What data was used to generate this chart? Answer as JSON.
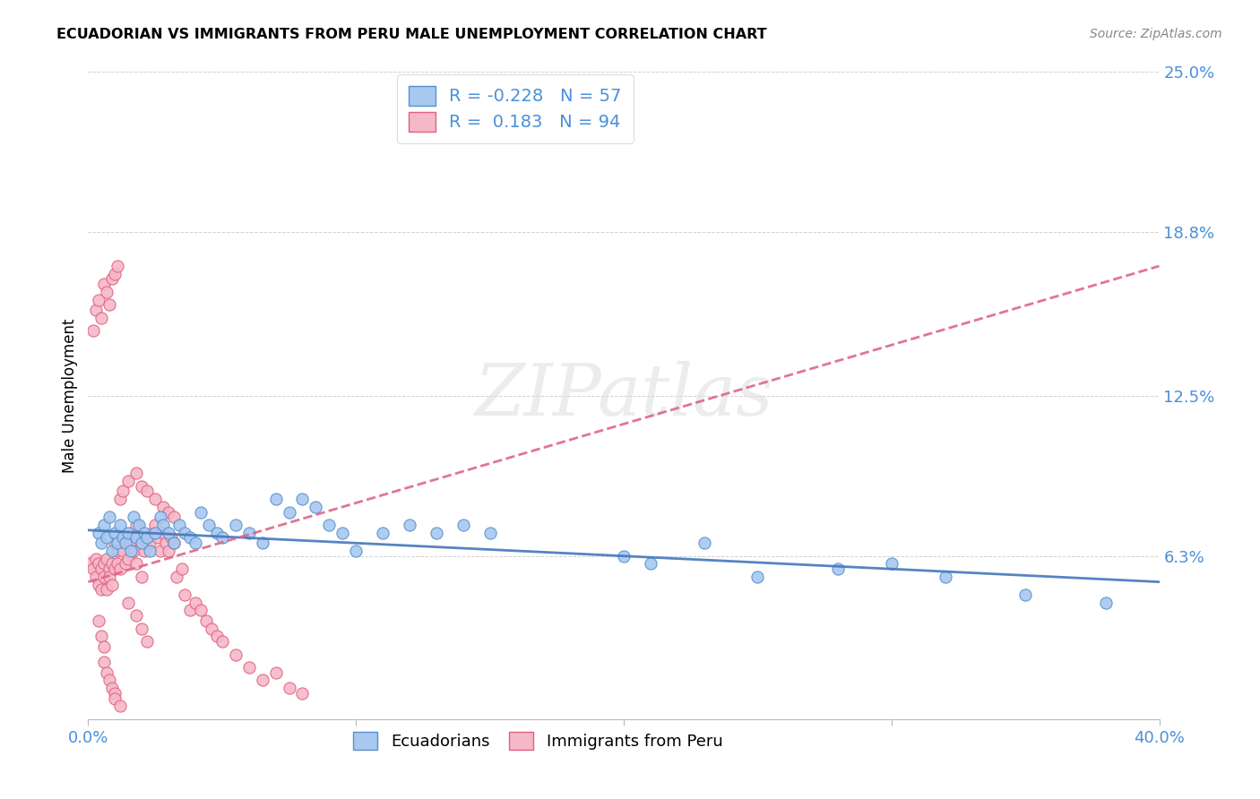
{
  "title": "ECUADORIAN VS IMMIGRANTS FROM PERU MALE UNEMPLOYMENT CORRELATION CHART",
  "source": "Source: ZipAtlas.com",
  "ylabel": "Male Unemployment",
  "xlim": [
    0.0,
    0.4
  ],
  "ylim": [
    0.0,
    0.25
  ],
  "yticks": [
    0.063,
    0.125,
    0.188,
    0.25
  ],
  "ytick_labels": [
    "6.3%",
    "12.5%",
    "18.8%",
    "25.0%"
  ],
  "xticks": [
    0.0,
    0.1,
    0.2,
    0.3,
    0.4
  ],
  "xtick_labels": [
    "0.0%",
    "",
    "",
    "",
    "40.0%"
  ],
  "blue_color": "#A8C8F0",
  "pink_color": "#F5B8C8",
  "blue_edge_color": "#5590CC",
  "pink_edge_color": "#E06080",
  "blue_line_color": "#4477BB",
  "pink_line_color": "#DD6688",
  "blue_R": -0.228,
  "blue_N": 57,
  "pink_R": 0.183,
  "pink_N": 94,
  "watermark": "ZIPatlas",
  "background_color": "#FFFFFF",
  "grid_color": "#CCCCCC",
  "axis_label_color": "#4A90D9",
  "blue_trend_x": [
    0.0,
    0.4
  ],
  "blue_trend_y": [
    0.073,
    0.053
  ],
  "pink_trend_x": [
    0.0,
    0.4
  ],
  "pink_trend_y": [
    0.053,
    0.175
  ],
  "blue_scatter_x": [
    0.004,
    0.005,
    0.006,
    0.007,
    0.008,
    0.009,
    0.01,
    0.011,
    0.012,
    0.013,
    0.014,
    0.015,
    0.016,
    0.017,
    0.018,
    0.019,
    0.02,
    0.021,
    0.022,
    0.023,
    0.025,
    0.027,
    0.028,
    0.03,
    0.032,
    0.034,
    0.036,
    0.038,
    0.04,
    0.042,
    0.045,
    0.048,
    0.05,
    0.055,
    0.06,
    0.065,
    0.07,
    0.075,
    0.08,
    0.085,
    0.09,
    0.095,
    0.1,
    0.11,
    0.12,
    0.13,
    0.14,
    0.15,
    0.2,
    0.21,
    0.23,
    0.25,
    0.28,
    0.3,
    0.32,
    0.35,
    0.38
  ],
  "blue_scatter_y": [
    0.072,
    0.068,
    0.075,
    0.07,
    0.078,
    0.065,
    0.072,
    0.068,
    0.075,
    0.07,
    0.068,
    0.072,
    0.065,
    0.078,
    0.07,
    0.075,
    0.068,
    0.072,
    0.07,
    0.065,
    0.072,
    0.078,
    0.075,
    0.072,
    0.068,
    0.075,
    0.072,
    0.07,
    0.068,
    0.08,
    0.075,
    0.072,
    0.07,
    0.075,
    0.072,
    0.068,
    0.085,
    0.08,
    0.085,
    0.082,
    0.075,
    0.072,
    0.065,
    0.072,
    0.075,
    0.072,
    0.075,
    0.072,
    0.063,
    0.06,
    0.068,
    0.055,
    0.058,
    0.06,
    0.055,
    0.048,
    0.045
  ],
  "pink_scatter_x": [
    0.001,
    0.002,
    0.003,
    0.003,
    0.004,
    0.004,
    0.005,
    0.005,
    0.006,
    0.006,
    0.007,
    0.007,
    0.008,
    0.008,
    0.009,
    0.009,
    0.01,
    0.01,
    0.011,
    0.011,
    0.012,
    0.013,
    0.014,
    0.015,
    0.015,
    0.016,
    0.017,
    0.018,
    0.018,
    0.019,
    0.02,
    0.02,
    0.021,
    0.022,
    0.023,
    0.024,
    0.025,
    0.026,
    0.027,
    0.028,
    0.029,
    0.03,
    0.031,
    0.032,
    0.033,
    0.035,
    0.036,
    0.038,
    0.04,
    0.042,
    0.044,
    0.046,
    0.048,
    0.05,
    0.055,
    0.06,
    0.065,
    0.07,
    0.075,
    0.08,
    0.002,
    0.003,
    0.004,
    0.005,
    0.006,
    0.007,
    0.008,
    0.009,
    0.01,
    0.011,
    0.012,
    0.013,
    0.015,
    0.018,
    0.02,
    0.022,
    0.025,
    0.028,
    0.03,
    0.032,
    0.004,
    0.005,
    0.006,
    0.006,
    0.007,
    0.008,
    0.009,
    0.01,
    0.01,
    0.012,
    0.015,
    0.018,
    0.02,
    0.022
  ],
  "pink_scatter_y": [
    0.06,
    0.058,
    0.062,
    0.055,
    0.06,
    0.052,
    0.058,
    0.05,
    0.06,
    0.055,
    0.062,
    0.05,
    0.058,
    0.055,
    0.06,
    0.052,
    0.068,
    0.058,
    0.065,
    0.06,
    0.058,
    0.065,
    0.06,
    0.07,
    0.062,
    0.068,
    0.065,
    0.075,
    0.06,
    0.07,
    0.068,
    0.055,
    0.065,
    0.07,
    0.068,
    0.072,
    0.075,
    0.07,
    0.065,
    0.072,
    0.068,
    0.065,
    0.07,
    0.068,
    0.055,
    0.058,
    0.048,
    0.042,
    0.045,
    0.042,
    0.038,
    0.035,
    0.032,
    0.03,
    0.025,
    0.02,
    0.015,
    0.018,
    0.012,
    0.01,
    0.15,
    0.158,
    0.162,
    0.155,
    0.168,
    0.165,
    0.16,
    0.17,
    0.172,
    0.175,
    0.085,
    0.088,
    0.092,
    0.095,
    0.09,
    0.088,
    0.085,
    0.082,
    0.08,
    0.078,
    0.038,
    0.032,
    0.028,
    0.022,
    0.018,
    0.015,
    0.012,
    0.01,
    0.008,
    0.005,
    0.045,
    0.04,
    0.035,
    0.03
  ]
}
